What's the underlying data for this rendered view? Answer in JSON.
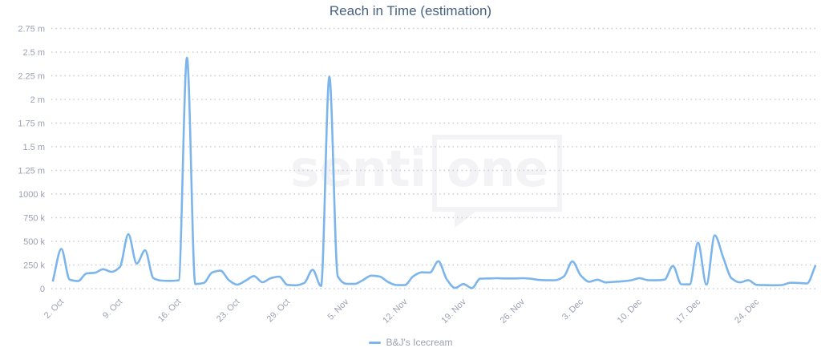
{
  "chart": {
    "title": "Reach in Time (estimation)"
  },
  "legend": {
    "label": "B&J's Icecream"
  },
  "watermark": {
    "text_left": "senti",
    "text_boxed": "one"
  },
  "colors": {
    "line": "#7cb5ec",
    "title": "#456180",
    "axis_label": "#9aa1b2",
    "grid_dot": "#c8ccd5",
    "watermark": "#f3f3f5"
  },
  "chart_data": {
    "type": "line",
    "title": "Reach in Time (estimation)",
    "ylabel": "",
    "xlabel": "",
    "grid": "dotted horizontal gridlines",
    "legend_position": "bottom center",
    "ylim_thousands": [
      0,
      2750
    ],
    "y_tick_labels": [
      "0",
      "250 k",
      "500 k",
      "750 k",
      "1000 k",
      "1.25 m",
      "1.5 m",
      "1.75 m",
      "2 m",
      "2.25 m",
      "2.5 m",
      "2.75 m"
    ],
    "y_tick_values_thousands": [
      0,
      250,
      500,
      750,
      1000,
      1250,
      1500,
      1750,
      2000,
      2250,
      2500,
      2750
    ],
    "x_tick_labels": [
      "2. Oct",
      "9. Oct",
      "16. Oct",
      "23. Oct",
      "29. Oct",
      "5. Nov",
      "12. Nov",
      "19. Nov",
      "26. Nov",
      "3. Dec",
      "10. Dec",
      "17. Dec",
      "24. Dec"
    ],
    "x_tick_day_offsets": [
      0,
      7,
      14,
      21,
      27,
      34,
      41,
      48,
      55,
      62,
      69,
      76,
      83
    ],
    "x_start_label": "2. Oct",
    "x_days_total": 92,
    "series": [
      {
        "name": "B&J's Icecream",
        "unit": "reach (thousands)",
        "values_thousands": [
          85,
          420,
          95,
          80,
          160,
          168,
          205,
          178,
          230,
          575,
          265,
          405,
          110,
          85,
          82,
          88,
          2440,
          48,
          60,
          170,
          190,
          90,
          42,
          85,
          133,
          68,
          110,
          127,
          40,
          36,
          60,
          200,
          28,
          2240,
          130,
          52,
          50,
          90,
          137,
          128,
          70,
          38,
          37,
          130,
          172,
          170,
          290,
          100,
          8,
          48,
          6,
          105,
          108,
          110,
          108,
          108,
          110,
          105,
          92,
          88,
          90,
          130,
          287,
          140,
          73,
          94,
          66,
          72,
          78,
          88,
          111,
          90,
          88,
          95,
          240,
          47,
          45,
          485,
          42,
          563,
          330,
          110,
          66,
          90,
          40,
          37,
          36,
          38,
          62,
          60,
          55,
          240
        ]
      }
    ],
    "notable_points": [
      {
        "label": "18. Oct spike",
        "value_thousands": 2440
      },
      {
        "label": "4. Nov spike",
        "value_thousands": 2240
      },
      {
        "label": "20. Dec spike",
        "value_thousands": 563
      }
    ]
  }
}
